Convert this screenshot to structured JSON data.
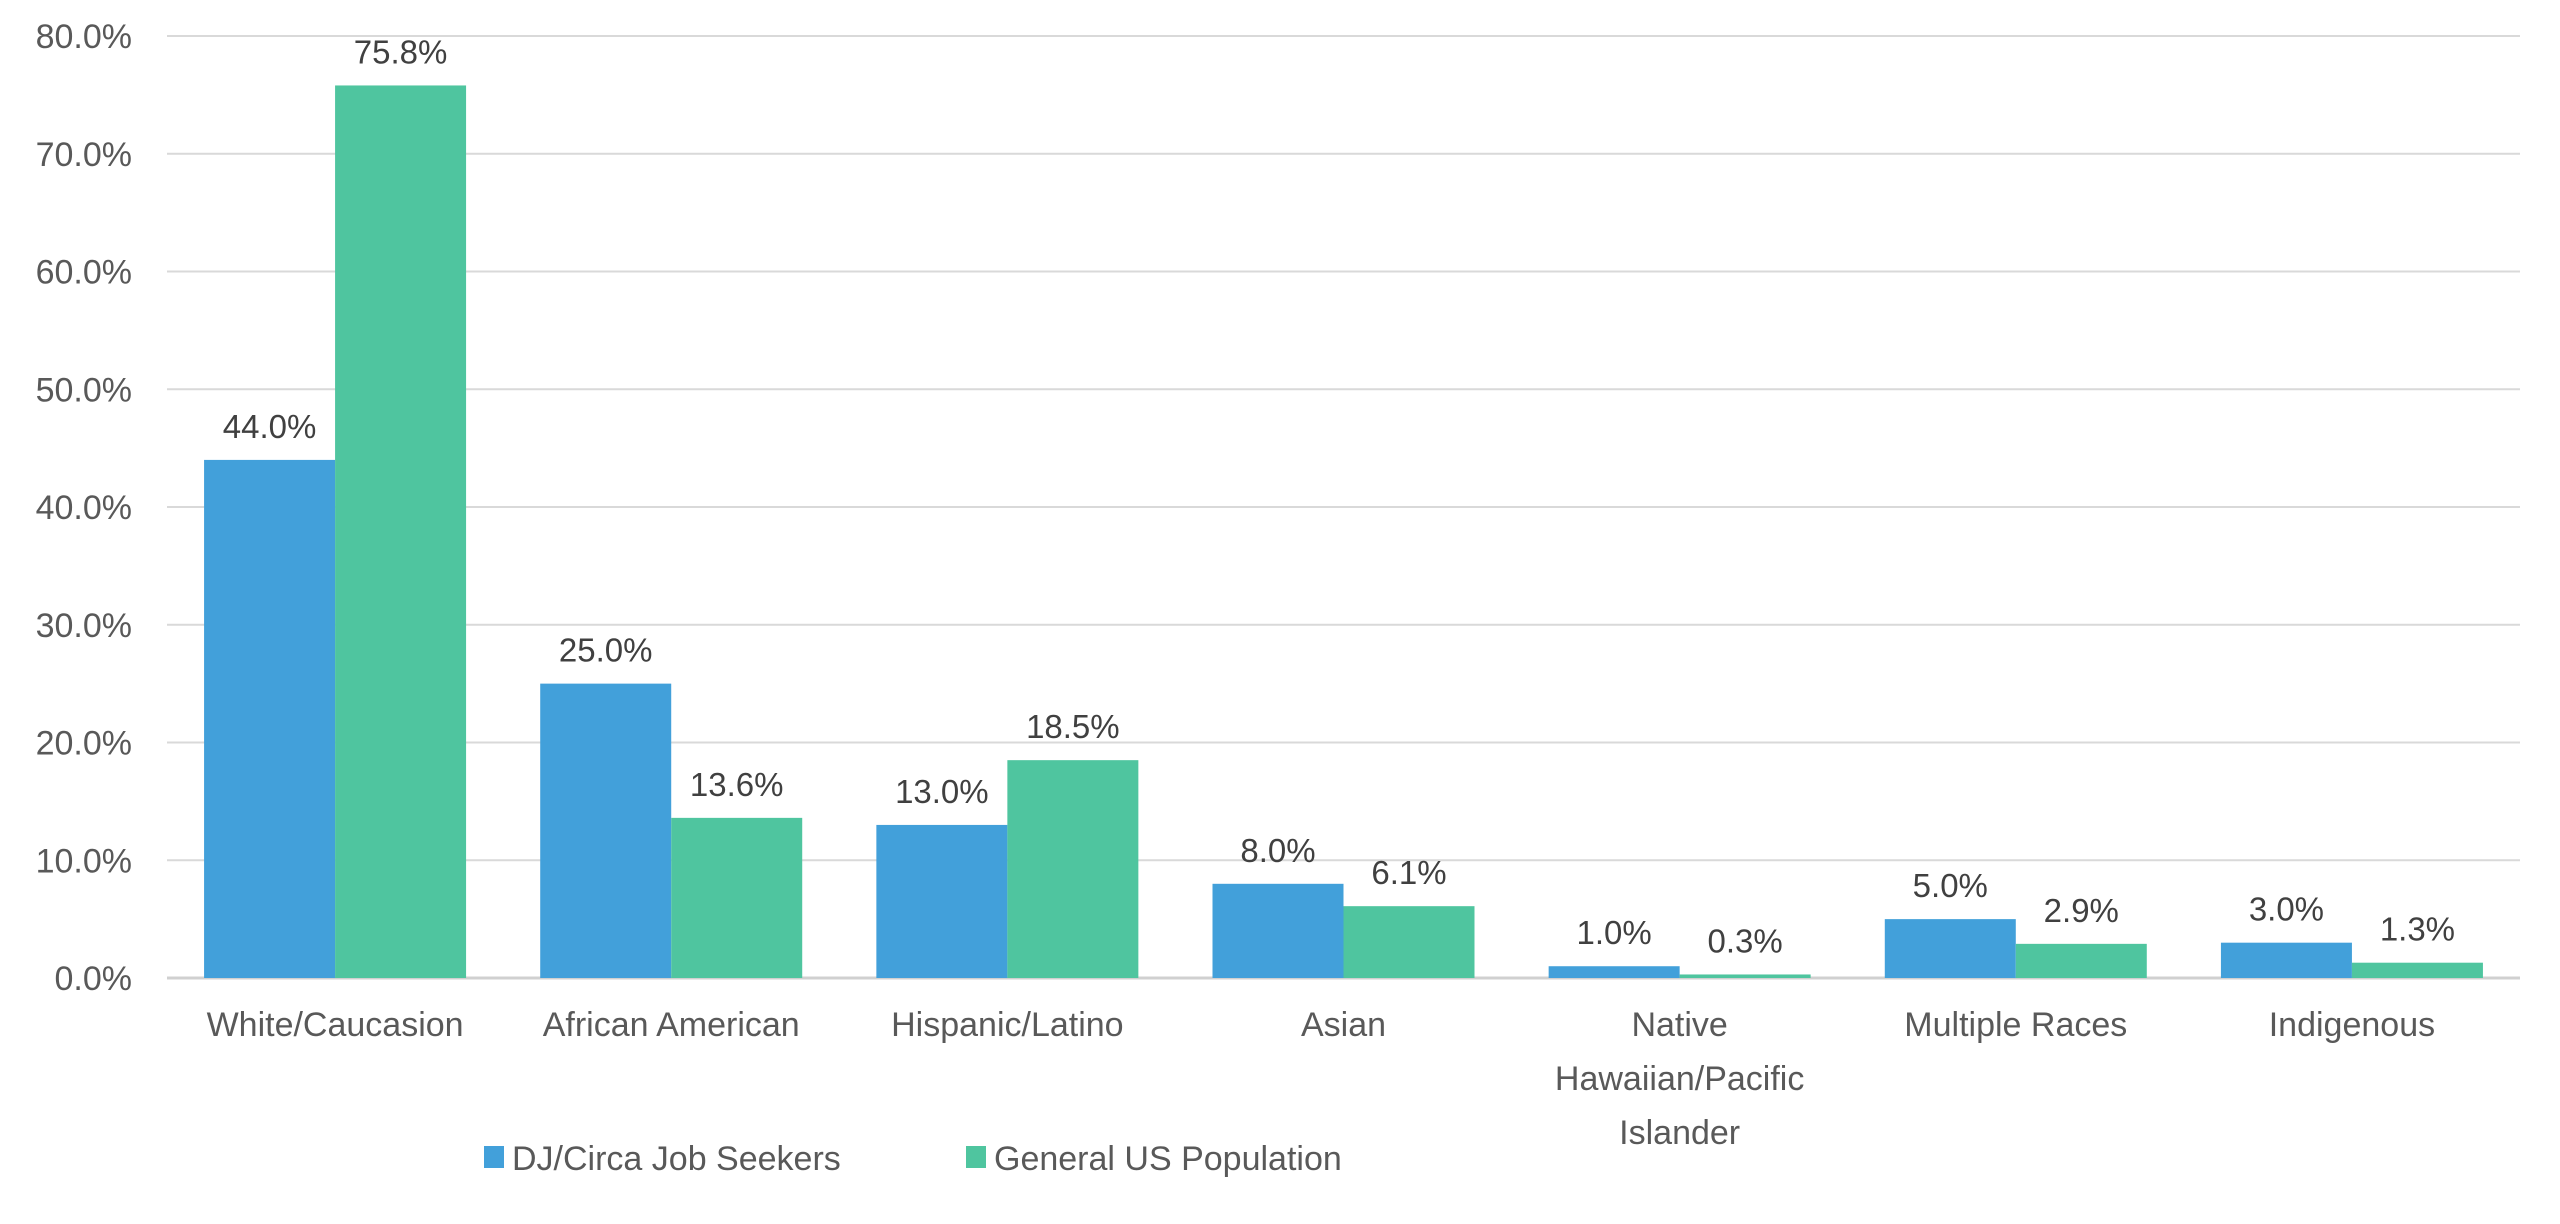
{
  "chart_data": {
    "type": "bar",
    "title": "",
    "xlabel": "",
    "ylabel": "",
    "ylim": [
      0,
      80
    ],
    "yticks": [
      "0.0%",
      "10.0%",
      "20.0%",
      "30.0%",
      "40.0%",
      "50.0%",
      "60.0%",
      "70.0%",
      "80.0%"
    ],
    "grid": true,
    "legend_position": "bottom",
    "categories": [
      [
        "White/Caucasion"
      ],
      [
        "African American"
      ],
      [
        "Hispanic/Latino"
      ],
      [
        "Asian"
      ],
      [
        "Native",
        "Hawaiian/Pacific",
        "Islander"
      ],
      [
        "Multiple Races"
      ],
      [
        "Indigenous"
      ]
    ],
    "series": [
      {
        "name": "DJ/Circa Job Seekers",
        "color": "#42A0DA",
        "values": [
          44.0,
          25.0,
          13.0,
          8.0,
          1.0,
          5.0,
          3.0
        ],
        "labels": [
          "44.0%",
          "25.0%",
          "13.0%",
          "8.0%",
          "1.0%",
          "5.0%",
          "3.0%"
        ]
      },
      {
        "name": "General US Population",
        "color": "#4FC59F",
        "values": [
          75.8,
          13.6,
          18.5,
          6.1,
          0.3,
          2.9,
          1.3
        ],
        "labels": [
          "75.8%",
          "13.6%",
          "18.5%",
          "6.1%",
          "0.3%",
          "2.9%",
          "1.3%"
        ]
      }
    ]
  }
}
